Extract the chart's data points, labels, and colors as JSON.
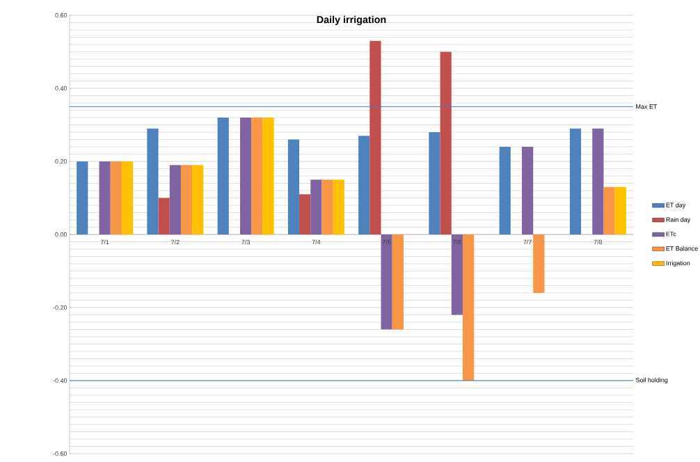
{
  "chart_data": {
    "type": "bar",
    "title": "Daily irrigation",
    "categories": [
      "7/1",
      "7/2",
      "7/3",
      "7/4",
      "7/5",
      "7/6",
      "7/7",
      "7/8"
    ],
    "series": [
      {
        "name": "ET day",
        "color": "#4f81bd",
        "values": [
          0.2,
          0.29,
          0.32,
          0.26,
          0.27,
          0.28,
          0.24,
          0.29
        ]
      },
      {
        "name": "Rain day",
        "color": "#c0504d",
        "values": [
          null,
          0.1,
          null,
          0.11,
          0.53,
          0.5,
          null,
          null
        ]
      },
      {
        "name": "ETc",
        "color": "#8064a2",
        "values": [
          0.2,
          0.19,
          0.32,
          0.15,
          -0.26,
          -0.22,
          0.24,
          0.29
        ]
      },
      {
        "name": "ET Balance",
        "color": "#f79646",
        "values": [
          0.2,
          0.19,
          0.32,
          0.15,
          -0.26,
          -0.4,
          -0.16,
          0.13
        ]
      },
      {
        "name": "Irrigation",
        "color": "#ffc000",
        "values": [
          0.2,
          0.19,
          0.32,
          0.15,
          null,
          null,
          null,
          0.13
        ]
      }
    ],
    "ylim": [
      -0.6,
      0.6
    ],
    "yticks": [
      {
        "value": -0.6,
        "label": "-0.60"
      },
      {
        "value": -0.4,
        "label": "-0.40"
      },
      {
        "value": -0.2,
        "label": "-0.20"
      },
      {
        "value": 0,
        "label": "0.00"
      },
      {
        "value": 0.2,
        "label": "0.20"
      },
      {
        "value": 0.4,
        "label": "0.40"
      },
      {
        "value": 0.6,
        "label": "0.60"
      }
    ],
    "ref_lines": [
      {
        "axis": "y",
        "value": 0.35,
        "label": "Max ET",
        "color": "#4472c4"
      },
      {
        "axis": "y",
        "value": -0.4,
        "label": "Soil holding",
        "color": "#4472c4"
      }
    ],
    "grid": "y",
    "legend": "right"
  }
}
